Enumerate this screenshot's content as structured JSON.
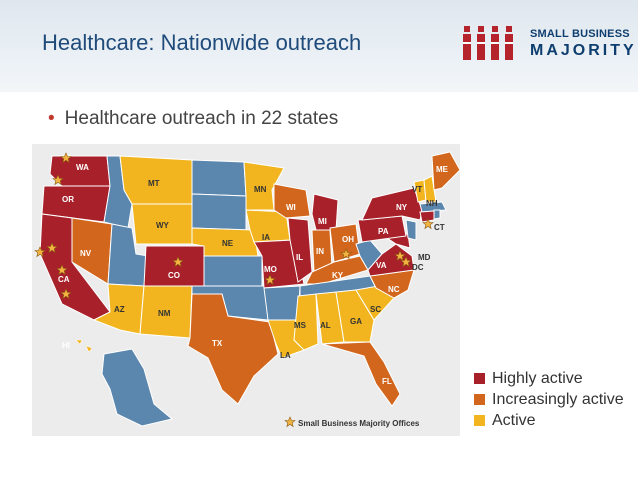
{
  "header": {
    "title": "Healthcare: Nationwide outreach"
  },
  "logo": {
    "line1": "SMALL BUSINESS",
    "line2": "MAJORITY"
  },
  "bullet": {
    "text": "Healthcare outreach in 22 states"
  },
  "map": {
    "offices_caption": "Small Business Majority Offices",
    "states": {
      "WA": "WA",
      "OR": "OR",
      "CA": "CA",
      "NV": "NV",
      "MT": "MT",
      "WY": "WY",
      "CO": "CO",
      "AZ": "AZ",
      "NM": "NM",
      "NE": "NE",
      "MN": "MN",
      "IA": "IA",
      "WI": "WI",
      "IL": "IL",
      "IN": "IN",
      "MI": "MI",
      "OH": "OH",
      "KY": "KY",
      "MO": "MO",
      "TX": "TX",
      "LA": "LA",
      "MS": "MS",
      "AL": "AL",
      "GA": "GA",
      "SC": "SC",
      "NC": "NC",
      "VA": "VA",
      "MD": "MD",
      "DC": "DC",
      "PA": "PA",
      "NY": "NY",
      "VT": "VT",
      "NH": "NH",
      "ME": "ME",
      "CT": "CT",
      "FL": "FL",
      "HI": "HI"
    },
    "colors": {
      "highly": "#a8202a",
      "increasing": "#d2661c",
      "active": "#f2b51f",
      "other": "#5b86ad"
    }
  },
  "legend": [
    {
      "label": "Highly active",
      "color": "#a8202a"
    },
    {
      "label": "Increasingly active",
      "color": "#d2661c"
    },
    {
      "label": "Active",
      "color": "#f2b51f"
    }
  ]
}
